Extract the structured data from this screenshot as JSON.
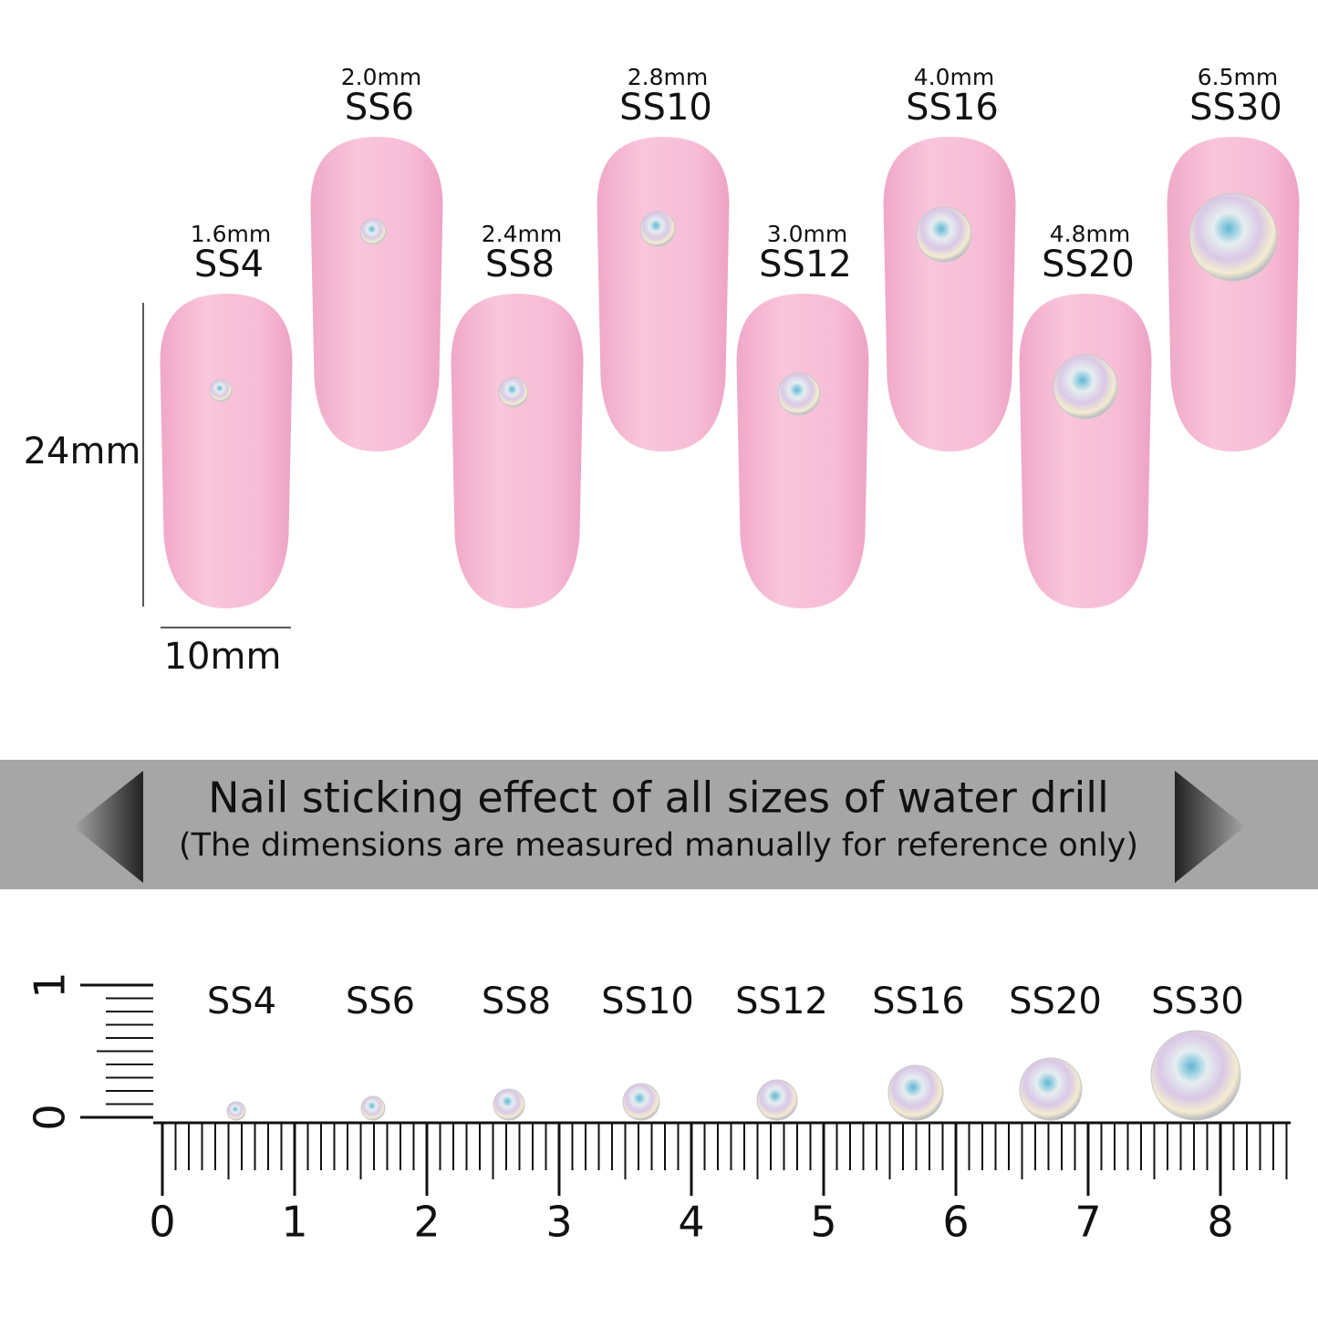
{
  "nails": [
    {
      "size": "1.6mm",
      "label": "SS4"
    },
    {
      "size": "2.0mm",
      "label": "SS6"
    },
    {
      "size": "2.4mm",
      "label": "SS8"
    },
    {
      "size": "2.8mm",
      "label": "SS10"
    },
    {
      "size": "3.0mm",
      "label": "SS12"
    },
    {
      "size": "4.0mm",
      "label": "SS16"
    },
    {
      "size": "4.8mm",
      "label": "SS20"
    },
    {
      "size": "6.5mm",
      "label": "SS30"
    }
  ],
  "dimensions": {
    "height": "24mm",
    "width": "10mm"
  },
  "banner": {
    "title": "Nail sticking effect of all sizes of water drill",
    "subtitle": "(The dimensions are measured manually for reference only)"
  },
  "ruler": {
    "stones": [
      "SS4",
      "SS6",
      "SS8",
      "SS10",
      "SS12",
      "SS16",
      "SS20",
      "SS30"
    ],
    "numbers": [
      "0",
      "1",
      "2",
      "3",
      "4",
      "5",
      "6",
      "7",
      "8"
    ],
    "side_numbers": [
      "0",
      "1"
    ]
  }
}
